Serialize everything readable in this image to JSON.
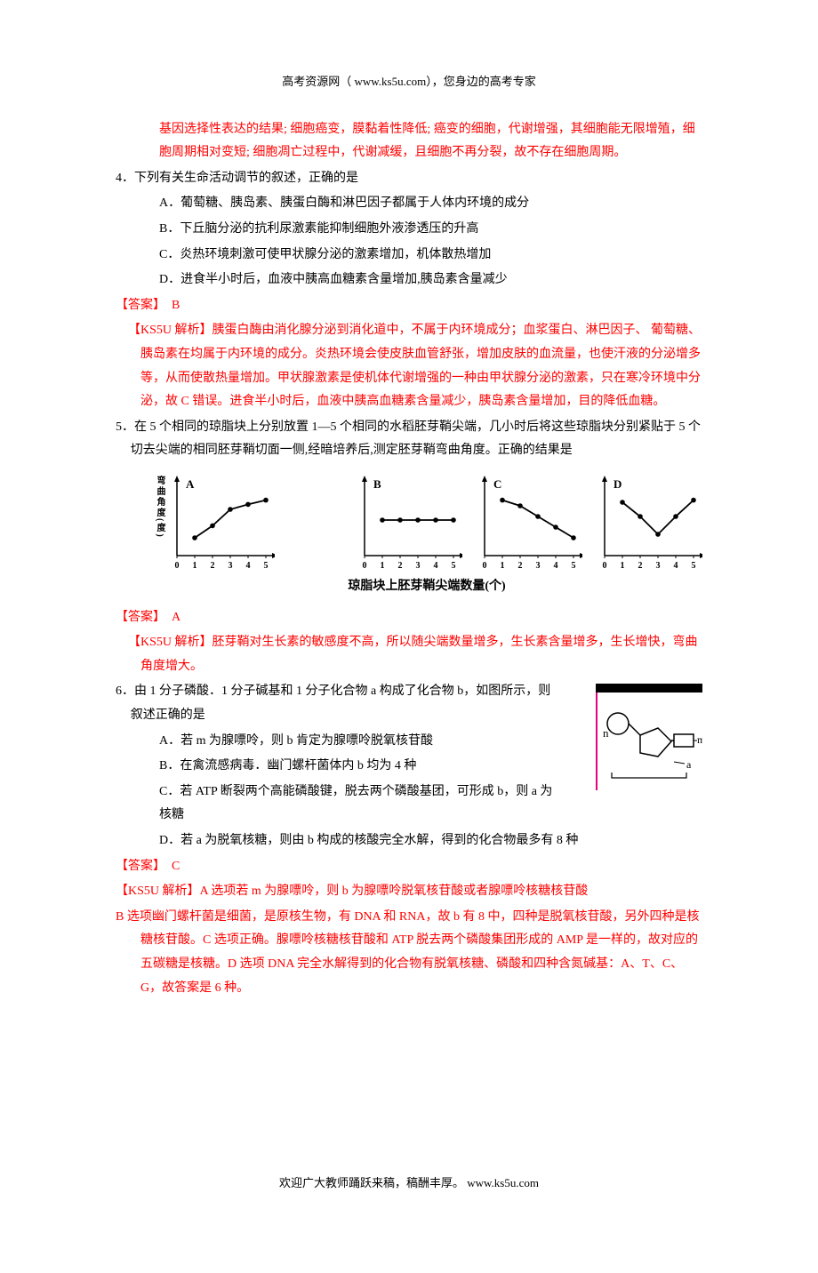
{
  "header": "高考资源网（ www.ks5u.com），您身边的高考专家",
  "q3_explain": "基因选择性表达的结果; 细胞癌变，膜黏着性降低; 癌变的细胞，代谢增强，其细胞能无限增殖，细胞周期相对变短; 细胞凋亡过程中，代谢减缓，且细胞不再分裂，故不存在细胞周期。",
  "q4": {
    "stem": "4．下列有关生命活动调节的叙述，正确的是",
    "A": "A．葡萄糖、胰岛素、胰蛋白酶和淋巴因子都属于人体内环境的成分",
    "B": "B．下丘脑分泌的抗利尿激素能抑制细胞外液渗透压的升高",
    "C": "C．炎热环境刺激可使甲状腺分泌的激素增加，机体散热增加",
    "D": "D．进食半小时后，血液中胰高血糖素含量增加,胰岛素含量减少",
    "ans_label": "【答案】　B",
    "explain": "【KS5U 解析】胰蛋白酶由消化腺分泌到消化道中，不属于内环境成分；血浆蛋白、淋巴因子、 葡萄糖、胰岛素在均属于内环境的成分。炎热环境会使皮肤血管舒张，增加皮肤的血流量，也使汗液的分泌增多等，从而使散热量增加。甲状腺激素是使机体代谢增强的一种由甲状腺分泌的激素，只在寒冷环境中分泌，故 C 错误。进食半小时后，血液中胰高血糖素含量减少，胰岛素含量增加，目的降低血糖。"
  },
  "q5": {
    "stem": "5．在 5 个相同的琼脂块上分别放置 1—5 个相同的水稻胚芽鞘尖端，几小时后将这些琼脂块分别紧贴于 5 个切去尖端的相同胚芽鞘切面一侧,经暗培养后,测定胚芽鞘弯曲角度。正确的结果是",
    "ylabel": "弯曲角度(度)",
    "xlabel": "琼脂块上胚芽鞘尖端数量(个)",
    "xticks": [
      "0",
      "1",
      "2",
      "3",
      "4",
      "5"
    ],
    "charts": {
      "A": {
        "label": "A",
        "points": [
          [
            1,
            25
          ],
          [
            2,
            42
          ],
          [
            3,
            65
          ],
          [
            4,
            72
          ],
          [
            5,
            78
          ]
        ],
        "color": "#000000"
      },
      "B": {
        "label": "B",
        "points": [
          [
            1,
            50
          ],
          [
            2,
            50
          ],
          [
            3,
            50
          ],
          [
            4,
            50
          ],
          [
            5,
            50
          ]
        ],
        "color": "#000000"
      },
      "C": {
        "label": "C",
        "points": [
          [
            1,
            78
          ],
          [
            2,
            70
          ],
          [
            3,
            55
          ],
          [
            4,
            40
          ],
          [
            5,
            25
          ]
        ],
        "color": "#000000"
      },
      "D": {
        "label": "D",
        "points": [
          [
            1,
            75
          ],
          [
            2,
            55
          ],
          [
            3,
            30
          ],
          [
            4,
            55
          ],
          [
            5,
            78
          ]
        ],
        "color": "#000000"
      }
    },
    "axis": {
      "xmin": 0,
      "xmax": 5,
      "ymin": 0,
      "ymax": 100,
      "w": 110,
      "h": 90,
      "grid_color": "#000000"
    },
    "ans_label": "【答案】　A",
    "explain": "【KS5U 解析】胚芽鞘对生长素的敏感度不高，所以随尖端数量增多，生长素含量增多，生长增快，弯曲角度增大。"
  },
  "q6": {
    "stem": "6．由 1 分子磷酸．1 分子碱基和 1 分子化合物 a 构成了化合物 b，如图所示，则叙述正确的是",
    "A": "A．若 m 为腺嘌呤，则 b 肯定为腺嘌呤脱氧核苷酸",
    "B": "B．在禽流感病毒．幽门螺杆菌体内 b 均为 4 种",
    "C": "C．若 ATP 断裂两个高能磷酸键，脱去两个磷酸基团，可形成 b，则 a 为核糖",
    "D": "D．若 a 为脱氧核糖，则由 b 构成的核酸完全水解，得到的化合物最多有 8 种",
    "ans_label": "【答案】　C",
    "explain_p1": "【KS5U 解析】A 选项若 m 为腺嘌呤，则 b 为腺嘌呤脱氧核苷酸或者腺嘌呤核糖核苷酸",
    "explain_p2": "B 选项幽门螺杆菌是细菌，是原核生物，有 DNA 和 RNA，故 b 有 8 中，四种是脱氧核苷酸，另外四种是核糖核苷酸。C 选项正确。腺嘌呤核糖核苷酸和 ATP 脱去两个磷酸集团形成的 AMP 是一样的，故对应的五碳糖是核糖。D 选项 DNA 完全水解得到的化合物有脱氧核糖、磷酸和四种含氮碱基：A、T、C、G，故答案是 6 种。",
    "diagram": {
      "topbar_color": "#000000",
      "leftbar_color": "#e4007f",
      "n_label": "n",
      "m_label": "m",
      "a_label": "a",
      "pentagon_stroke": "#000000",
      "circle_stroke": "#000000"
    }
  },
  "footer": "欢迎广大教师踊跃来稿，稿酬丰厚。  www.ks5u.com"
}
